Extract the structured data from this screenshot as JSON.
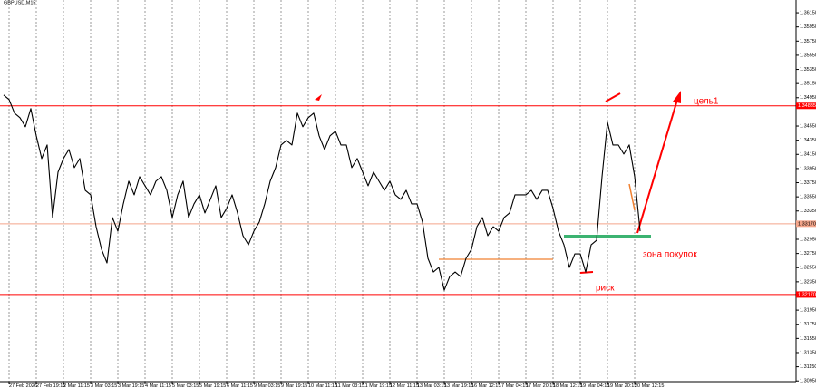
{
  "chart_data": {
    "type": "line",
    "title": "GBPUSD,M15",
    "series": [
      {
        "name": "GBPUSD",
        "color": "#000000",
        "values": [
          1.34988,
          1.34924,
          1.34732,
          1.34668,
          1.3454,
          1.34796,
          1.34412,
          1.34091,
          1.34283,
          1.33258,
          1.33899,
          1.34091,
          1.34219,
          1.33963,
          1.34091,
          1.33642,
          1.33578,
          1.33129,
          1.32809,
          1.32617,
          1.33258,
          1.33065,
          1.3345,
          1.33771,
          1.33578,
          1.33835,
          1.33706,
          1.33578,
          1.33771,
          1.33835,
          1.33642,
          1.33258,
          1.33578,
          1.33771,
          1.33258,
          1.3345,
          1.33578,
          1.33322,
          1.33514,
          1.33706,
          1.33258,
          1.33386,
          1.33578,
          1.33322,
          1.33001,
          1.32873,
          1.33065,
          1.33194,
          1.3345,
          1.33771,
          1.33963,
          1.34283,
          1.34347,
          1.34283,
          1.34732,
          1.3454,
          1.34668,
          1.34732,
          1.34412,
          1.34219,
          1.34412,
          1.34476,
          1.34283,
          1.34283,
          1.33963,
          1.34091,
          1.33899,
          1.33706,
          1.33899,
          1.33771,
          1.33642,
          1.33771,
          1.33578,
          1.33514,
          1.33642,
          1.3345,
          1.3345,
          1.33194,
          1.32681,
          1.32488,
          1.32553,
          1.32232,
          1.32424,
          1.32488,
          1.32424,
          1.32681,
          1.32809,
          1.33129,
          1.33258,
          1.33001,
          1.33129,
          1.33065,
          1.33258,
          1.33322,
          1.33578,
          1.33578,
          1.33578,
          1.33642,
          1.33514,
          1.33642,
          1.33642,
          1.33386,
          1.33065,
          1.32873,
          1.32553,
          1.32745,
          1.32745,
          1.32488,
          1.32873,
          1.32937,
          1.33835,
          1.34604,
          1.34283,
          1.34283,
          1.34155,
          1.34283,
          1.33835,
          1.33065
        ]
      }
    ],
    "xlim": [
      0,
      117
    ],
    "xticks": [
      {
        "value": 1,
        "label": "27 Feb 2026"
      },
      {
        "value": 6,
        "label": "27 Feb 19:15"
      },
      {
        "value": 11,
        "label": "2 Mar 11:15"
      },
      {
        "value": 16,
        "label": "3 Mar 03:15"
      },
      {
        "value": 21,
        "label": "3 Mar 19:15"
      },
      {
        "value": 26,
        "label": "4 Mar 11:15"
      },
      {
        "value": 31,
        "label": "5 Mar 03:15"
      },
      {
        "value": 36,
        "label": "5 Mar 19:15"
      },
      {
        "value": 41,
        "label": "6 Mar 11:15"
      },
      {
        "value": 46,
        "label": "9 Mar 03:15"
      },
      {
        "value": 51,
        "label": "9 Mar 19:15"
      },
      {
        "value": 56,
        "label": "10 Mar 11:15"
      },
      {
        "value": 61,
        "label": "11 Mar 03:15"
      },
      {
        "value": 66,
        "label": "11 Mar 19:15"
      },
      {
        "value": 71,
        "label": "12 Mar 11:15"
      },
      {
        "value": 76,
        "label": "13 Mar 03:15"
      },
      {
        "value": 81,
        "label": "13 Mar 19:15"
      },
      {
        "value": 86,
        "label": "16 Mar 12:15"
      },
      {
        "value": 91,
        "label": "17 Mar 04:15"
      },
      {
        "value": 96,
        "label": "17 Mar 20:15"
      },
      {
        "value": 101,
        "label": "18 Mar 12:15"
      },
      {
        "value": 106,
        "label": "19 Mar 04:15"
      },
      {
        "value": 111,
        "label": "19 Mar 20:15"
      },
      {
        "value": 116,
        "label": "20 Mar 12:15"
      }
    ],
    "ylim": [
      1.3094,
      1.3633
    ],
    "yticks": [
      {
        "value": 1.3095,
        "label": "1.30950"
      },
      {
        "value": 1.3115,
        "label": "1.31150"
      },
      {
        "value": 1.3135,
        "label": "1.31350"
      },
      {
        "value": 1.3155,
        "label": "1.31550"
      },
      {
        "value": 1.3175,
        "label": "1.31750"
      },
      {
        "value": 1.3195,
        "label": "1.31950"
      },
      {
        "value": 1.3235,
        "label": "1.32350"
      },
      {
        "value": 1.3255,
        "label": "1.32550"
      },
      {
        "value": 1.3275,
        "label": "1.32750"
      },
      {
        "value": 1.3295,
        "label": "1.32950"
      },
      {
        "value": 1.3335,
        "label": "1.33350"
      },
      {
        "value": 1.3355,
        "label": "1.33550"
      },
      {
        "value": 1.3375,
        "label": "1.33750"
      },
      {
        "value": 1.3395,
        "label": "1.33950"
      },
      {
        "value": 1.3415,
        "label": "1.34150"
      },
      {
        "value": 1.3435,
        "label": "1.34350"
      },
      {
        "value": 1.3455,
        "label": "1.34550"
      },
      {
        "value": 1.3495,
        "label": "1.34950"
      },
      {
        "value": 1.3515,
        "label": "1.35150"
      },
      {
        "value": 1.3535,
        "label": "1.35350"
      },
      {
        "value": 1.3555,
        "label": "1.35550"
      },
      {
        "value": 1.3575,
        "label": "1.35750"
      },
      {
        "value": 1.3595,
        "label": "1.35950"
      },
      {
        "value": 1.3615,
        "label": "1.36150"
      }
    ],
    "grid": true,
    "levels": [
      {
        "value": 1.34835,
        "label": "1.34835",
        "color": "#ff0000"
      },
      {
        "value": 1.3317,
        "label": "1.33170",
        "color": "#f4a58a"
      },
      {
        "value": 1.3217,
        "label": "1.32170",
        "color": "#ff0000"
      }
    ],
    "segments": [
      {
        "value": 1.32668,
        "color": "#f08030",
        "from": 80,
        "to": 101
      },
      {
        "value": 1.32988,
        "color": "#3cb371",
        "from": 103,
        "to": 119
      }
    ],
    "annotations": [
      {
        "text": "цель1"
      },
      {
        "text": "зона покупок"
      },
      {
        "text": "риск"
      }
    ]
  }
}
